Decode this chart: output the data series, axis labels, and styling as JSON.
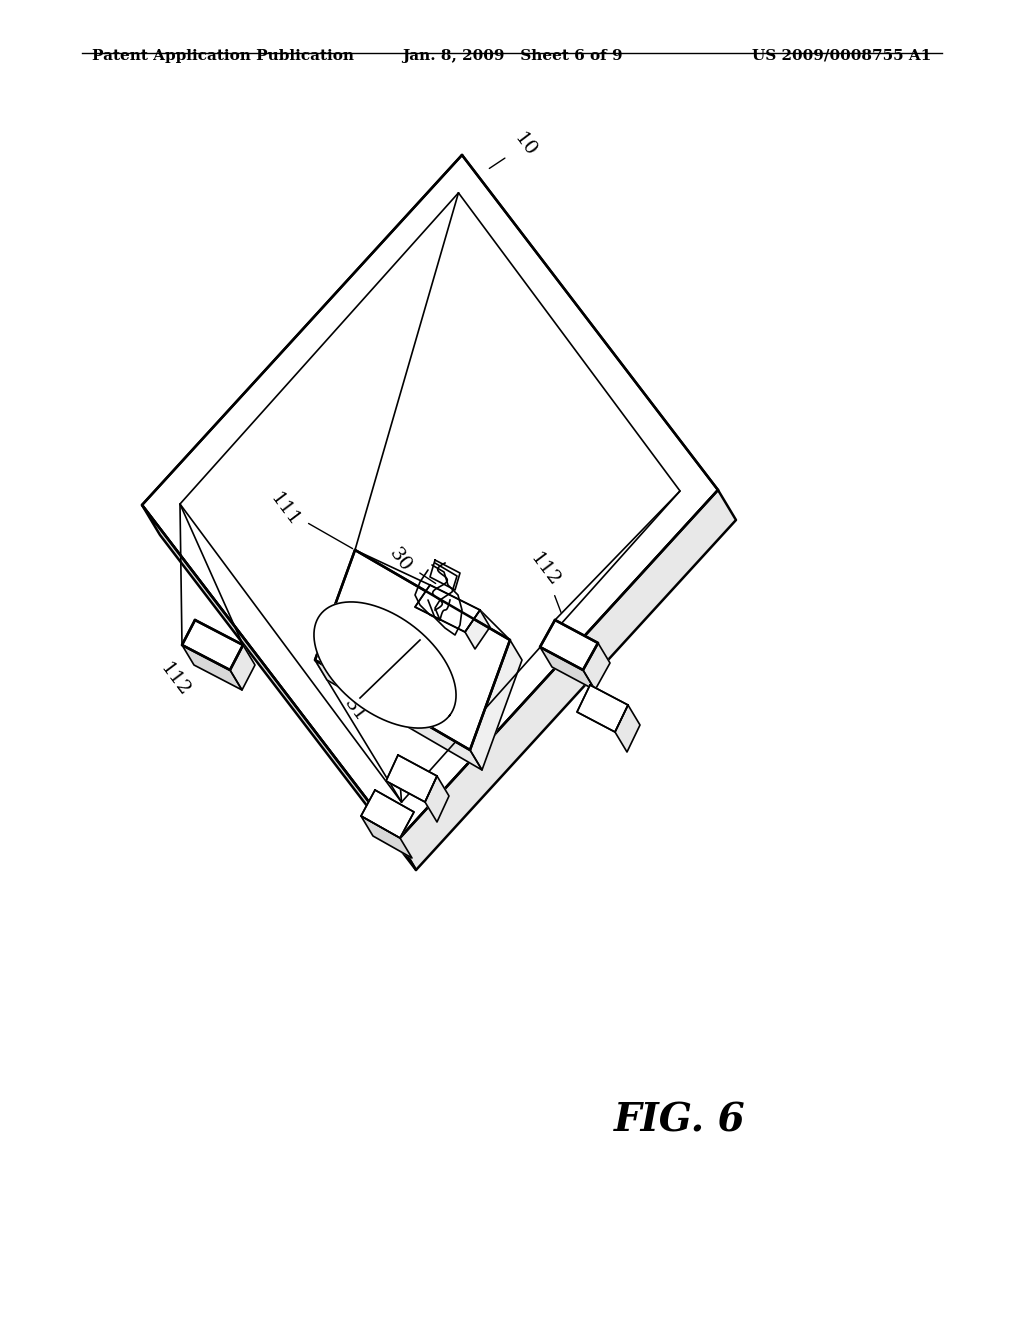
{
  "background_color": "#ffffff",
  "header_left": "Patent Application Publication",
  "header_mid": "Jan. 8, 2009   Sheet 6 of 9",
  "header_right": "US 2009/0008755 A1",
  "fig_label": "FIG. 6",
  "fig_label_fontsize": 28,
  "label_fontsize": 14,
  "lw_main": 1.8,
  "lw_thin": 1.2
}
